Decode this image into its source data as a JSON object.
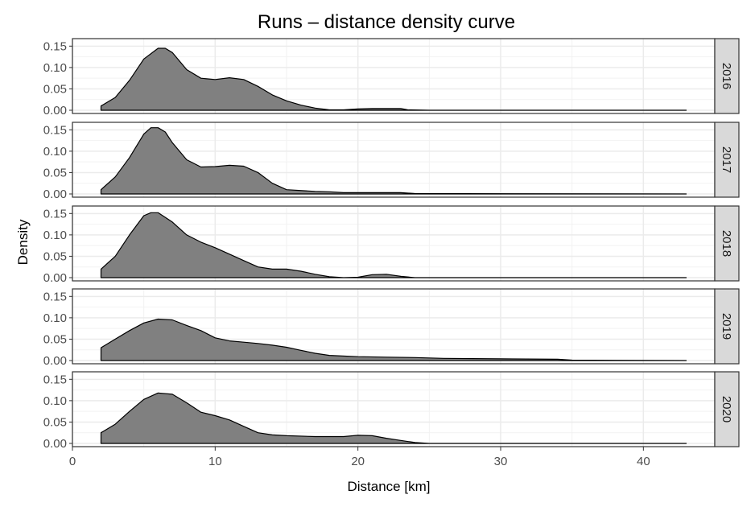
{
  "chart_data": {
    "type": "area",
    "title": "Runs – distance density curve",
    "xlabel": "Distance [km]",
    "ylabel": "Density",
    "xlim": [
      0,
      45
    ],
    "ylim": [
      0,
      0.16
    ],
    "xticks": [
      0,
      10,
      20,
      30,
      40
    ],
    "xtick_labels": [
      "0",
      "10",
      "20",
      "30",
      "40"
    ],
    "yticks": [
      0,
      0.05,
      0.1,
      0.15
    ],
    "ytick_labels": [
      "0.00",
      "0.05",
      "0.10",
      "0.15"
    ],
    "grid": true,
    "colors": {
      "fill": "#808080",
      "stroke": "#000000",
      "strip": "#d9d9d9",
      "grid": "#ebebeb"
    },
    "facets": [
      {
        "label": "2016",
        "points": [
          [
            2,
            0.01
          ],
          [
            3,
            0.03
          ],
          [
            4,
            0.07
          ],
          [
            5,
            0.12
          ],
          [
            6,
            0.145
          ],
          [
            6.5,
            0.145
          ],
          [
            7,
            0.135
          ],
          [
            8,
            0.095
          ],
          [
            9,
            0.075
          ],
          [
            10,
            0.072
          ],
          [
            11,
            0.076
          ],
          [
            12,
            0.072
          ],
          [
            13,
            0.056
          ],
          [
            14,
            0.036
          ],
          [
            15,
            0.022
          ],
          [
            16,
            0.012
          ],
          [
            17,
            0.005
          ],
          [
            18,
            0.001
          ],
          [
            19,
            0.001
          ],
          [
            20,
            0.003
          ],
          [
            21,
            0.004
          ],
          [
            22,
            0.004
          ],
          [
            23,
            0.004
          ],
          [
            23.5,
            0.001
          ],
          [
            25,
            0.0
          ],
          [
            43,
            0.0
          ]
        ]
      },
      {
        "label": "2017",
        "points": [
          [
            2,
            0.01
          ],
          [
            3,
            0.04
          ],
          [
            4,
            0.085
          ],
          [
            5,
            0.14
          ],
          [
            5.5,
            0.155
          ],
          [
            6,
            0.155
          ],
          [
            6.5,
            0.145
          ],
          [
            7,
            0.12
          ],
          [
            8,
            0.08
          ],
          [
            9,
            0.063
          ],
          [
            10,
            0.064
          ],
          [
            11,
            0.067
          ],
          [
            12,
            0.065
          ],
          [
            13,
            0.05
          ],
          [
            14,
            0.025
          ],
          [
            15,
            0.01
          ],
          [
            17,
            0.006
          ],
          [
            18,
            0.005
          ],
          [
            19,
            0.003
          ],
          [
            23,
            0.003
          ],
          [
            24,
            0.001
          ],
          [
            43,
            0.0
          ]
        ]
      },
      {
        "label": "2018",
        "points": [
          [
            2,
            0.02
          ],
          [
            3,
            0.05
          ],
          [
            4,
            0.1
          ],
          [
            5,
            0.145
          ],
          [
            5.5,
            0.152
          ],
          [
            6,
            0.152
          ],
          [
            7,
            0.13
          ],
          [
            8,
            0.1
          ],
          [
            9,
            0.083
          ],
          [
            10,
            0.07
          ],
          [
            11,
            0.055
          ],
          [
            12,
            0.04
          ],
          [
            13,
            0.025
          ],
          [
            14,
            0.02
          ],
          [
            15,
            0.02
          ],
          [
            16,
            0.015
          ],
          [
            17,
            0.008
          ],
          [
            18,
            0.002
          ],
          [
            19,
            0.0
          ],
          [
            20,
            0.001
          ],
          [
            21,
            0.007
          ],
          [
            22,
            0.008
          ],
          [
            23,
            0.003
          ],
          [
            24,
            0.0
          ],
          [
            43,
            0.0
          ]
        ]
      },
      {
        "label": "2019",
        "points": [
          [
            2,
            0.03
          ],
          [
            3,
            0.05
          ],
          [
            4,
            0.07
          ],
          [
            5,
            0.088
          ],
          [
            6,
            0.097
          ],
          [
            7,
            0.095
          ],
          [
            8,
            0.082
          ],
          [
            9,
            0.07
          ],
          [
            10,
            0.053
          ],
          [
            11,
            0.046
          ],
          [
            12,
            0.043
          ],
          [
            13,
            0.04
          ],
          [
            14,
            0.036
          ],
          [
            15,
            0.031
          ],
          [
            16,
            0.024
          ],
          [
            17,
            0.017
          ],
          [
            18,
            0.012
          ],
          [
            20,
            0.009
          ],
          [
            22,
            0.008
          ],
          [
            24,
            0.007
          ],
          [
            26,
            0.005
          ],
          [
            30,
            0.004
          ],
          [
            34,
            0.003
          ],
          [
            35,
            0.001
          ],
          [
            43,
            0.0
          ]
        ]
      },
      {
        "label": "2020",
        "points": [
          [
            2,
            0.025
          ],
          [
            3,
            0.045
          ],
          [
            4,
            0.075
          ],
          [
            5,
            0.103
          ],
          [
            6,
            0.118
          ],
          [
            7,
            0.115
          ],
          [
            8,
            0.095
          ],
          [
            9,
            0.073
          ],
          [
            10,
            0.065
          ],
          [
            11,
            0.055
          ],
          [
            12,
            0.04
          ],
          [
            13,
            0.025
          ],
          [
            14,
            0.02
          ],
          [
            15,
            0.018
          ],
          [
            17,
            0.016
          ],
          [
            19,
            0.016
          ],
          [
            20,
            0.019
          ],
          [
            21,
            0.018
          ],
          [
            22,
            0.012
          ],
          [
            23,
            0.007
          ],
          [
            24,
            0.002
          ],
          [
            25,
            0.0
          ],
          [
            43,
            0.0
          ]
        ]
      }
    ]
  }
}
